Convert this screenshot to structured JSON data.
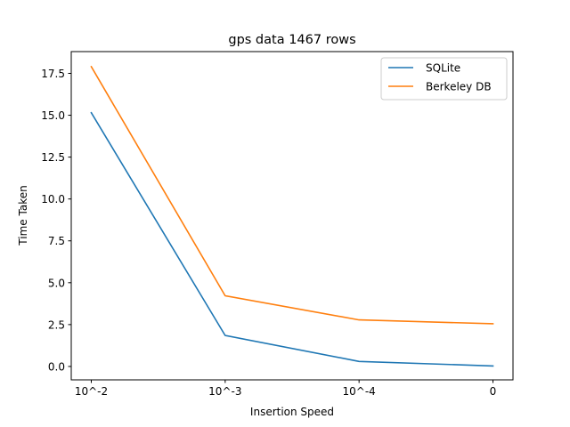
{
  "chart_data": {
    "type": "line",
    "title": "gps data 1467 rows",
    "xlabel": "Insertion Speed",
    "ylabel": "Time Taken",
    "categories": [
      "10^-2",
      "10^-3",
      "10^-4",
      "0"
    ],
    "ylim": [
      -0.8,
      18.8
    ],
    "yticks": [
      0.0,
      2.5,
      5.0,
      7.5,
      10.0,
      12.5,
      15.0,
      17.5
    ],
    "ytick_labels": [
      "0.0",
      "2.5",
      "5.0",
      "7.5",
      "10.0",
      "12.5",
      "15.0",
      "17.5"
    ],
    "grid": false,
    "legend_position": "top-right",
    "series": [
      {
        "name": "SQLite",
        "color": "#1f77b4",
        "values": [
          15.15,
          1.85,
          0.3,
          0.03
        ]
      },
      {
        "name": "Berkeley DB",
        "color": "#ff7f0e",
        "values": [
          17.9,
          4.22,
          2.78,
          2.55
        ]
      }
    ]
  }
}
